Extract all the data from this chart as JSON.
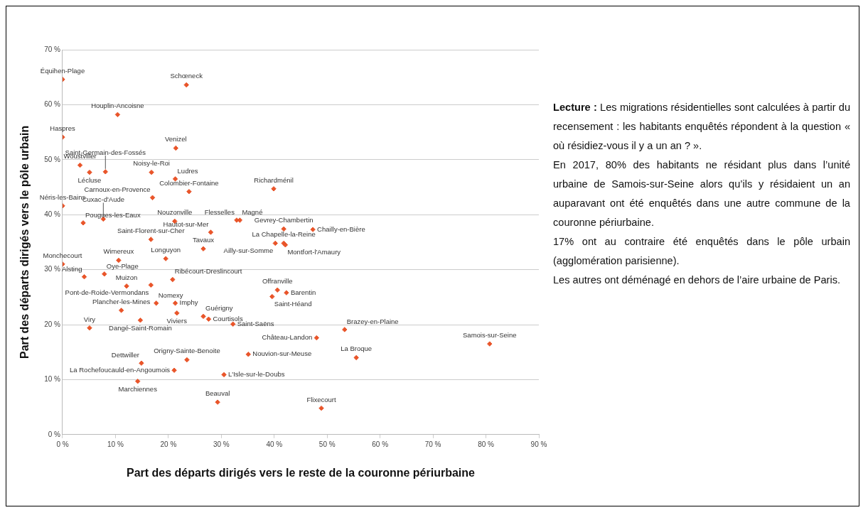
{
  "chart_data": {
    "type": "scatter",
    "xlabel": "Part des départs dirigés vers le reste de la couronne périurbaine",
    "ylabel": "Part des départs dirigés vers le pôle urbain",
    "x": [
      0,
      23.4,
      10.4,
      0,
      21.4,
      3.3,
      5.1,
      8.1,
      16.8,
      21.3,
      23.9,
      17.0,
      0,
      7.7,
      3.9,
      21.2,
      32.9,
      33.5,
      39.9,
      28.0,
      26.6,
      41.8,
      47.3,
      40.2,
      41.8,
      42.1,
      40.6,
      42.3,
      39.6,
      16.7,
      0,
      10.6,
      19.5,
      4.1,
      7.9,
      20.8,
      12.1,
      16.7,
      11.1,
      17.7,
      21.3,
      21.6,
      26.6,
      27.6,
      32.2,
      5.1,
      14.7,
      14.9,
      23.5,
      21.1,
      14.2,
      35.1,
      30.5,
      29.3,
      48.0,
      53.3,
      55.5,
      80.7,
      48.9
    ],
    "series": [
      {
        "color": "#e9552a",
        "values": [
          64.6,
          63.6,
          58.2,
          54.1,
          52.1,
          49.0,
          47.7,
          47.8,
          47.7,
          46.5,
          44.2,
          43.1,
          41.6,
          39.2,
          38.5,
          38.8,
          39.0,
          39.0,
          44.7,
          36.8,
          33.8,
          37.4,
          37.3,
          34.8,
          34.8,
          34.5,
          26.3,
          25.8,
          25.1,
          35.5,
          31.0,
          31.7,
          32.0,
          28.7,
          29.2,
          28.2,
          27.0,
          27.2,
          22.6,
          23.9,
          23.9,
          22.1,
          21.5,
          21.0,
          20.1,
          19.4,
          20.8,
          13.0,
          13.6,
          11.7,
          9.7,
          14.6,
          10.9,
          5.9,
          17.6,
          19.1,
          14.0,
          16.5,
          4.8
        ]
      }
    ],
    "xlim": [
      0,
      90
    ],
    "xticks": [
      {
        "value": 0,
        "label": "0 %"
      },
      {
        "value": 10,
        "label": "10 %"
      },
      {
        "value": 20,
        "label": "20 %"
      },
      {
        "value": 30,
        "label": "30 %"
      },
      {
        "value": 40,
        "label": "40 %"
      },
      {
        "value": 50,
        "label": "50 %"
      },
      {
        "value": 60,
        "label": "60 %"
      },
      {
        "value": 70,
        "label": "70 %"
      },
      {
        "value": 80,
        "label": "80 %"
      },
      {
        "value": 90,
        "label": "90 %"
      }
    ],
    "ylim": [
      0,
      70
    ],
    "yticks": [
      {
        "value": 0,
        "label": "0 %"
      },
      {
        "value": 10,
        "label": "10 %"
      },
      {
        "value": 20,
        "label": "20 %"
      },
      {
        "value": 30,
        "label": "30 %"
      },
      {
        "value": 40,
        "label": "40 %"
      },
      {
        "value": 50,
        "label": "50 %"
      },
      {
        "value": 60,
        "label": "60 %"
      },
      {
        "value": 70,
        "label": "70 %"
      }
    ],
    "grid": "y",
    "marker": "diamond",
    "annotations": [
      {
        "text": "Équihen-Plage",
        "x": 0,
        "y": 64.6
      },
      {
        "text": "Schœneck",
        "x": 23.4,
        "y": 63.6
      },
      {
        "text": "Houplin-Ancoisne",
        "x": 10.4,
        "y": 58.2
      },
      {
        "text": "Haspres",
        "x": 0,
        "y": 54.1
      },
      {
        "text": "Venizel",
        "x": 21.4,
        "y": 52.1
      },
      {
        "text": "Woustviller",
        "x": 3.3,
        "y": 49.0
      },
      {
        "text": "Lécluse",
        "x": 5.1,
        "y": 47.7
      },
      {
        "text": "Saint-Germain-des-Fossés",
        "x": 8.1,
        "y": 47.8
      },
      {
        "text": "Noisy-le-Roi",
        "x": 16.8,
        "y": 47.7
      },
      {
        "text": "Ludres",
        "x": 21.3,
        "y": 46.5
      },
      {
        "text": "Colombier-Fontaine",
        "x": 23.9,
        "y": 44.2
      },
      {
        "text": "Carnoux-en-Provence",
        "x": 17.0,
        "y": 43.1
      },
      {
        "text": "Néris-les-Bains",
        "x": 0,
        "y": 41.6
      },
      {
        "text": "Cuxac-d'Aude",
        "x": 7.7,
        "y": 39.2
      },
      {
        "text": "Pougues-les-Eaux",
        "x": 3.9,
        "y": 38.5
      },
      {
        "text": "Nouzonville",
        "x": 21.2,
        "y": 38.8
      },
      {
        "text": "Flesselles",
        "x": 32.9,
        "y": 39.0
      },
      {
        "text": "Magné",
        "x": 33.5,
        "y": 39.0
      },
      {
        "text": "Richardménil",
        "x": 39.9,
        "y": 44.7
      },
      {
        "text": "Hautot-sur-Mer",
        "x": 28.0,
        "y": 36.8
      },
      {
        "text": "Tavaux",
        "x": 26.6,
        "y": 33.8
      },
      {
        "text": "Gevrey-Chambertin",
        "x": 41.8,
        "y": 37.4
      },
      {
        "text": "Chailly-en-Bière",
        "x": 47.3,
        "y": 37.3
      },
      {
        "text": "Ailly-sur-Somme",
        "x": 40.2,
        "y": 34.8
      },
      {
        "text": "La Chapelle-la-Reine",
        "x": 41.8,
        "y": 34.8
      },
      {
        "text": "Montfort-l'Amaury",
        "x": 42.1,
        "y": 34.5
      },
      {
        "text": "Offranville",
        "x": 40.6,
        "y": 26.3
      },
      {
        "text": "Barentin",
        "x": 42.3,
        "y": 25.8
      },
      {
        "text": "Saint-Héand",
        "x": 39.6,
        "y": 25.1
      },
      {
        "text": "Saint-Florent-sur-Cher",
        "x": 16.7,
        "y": 35.5
      },
      {
        "text": "Monchecourt",
        "x": 0,
        "y": 31.0
      },
      {
        "text": "Wimereux",
        "x": 10.6,
        "y": 31.7
      },
      {
        "text": "Longuyon",
        "x": 19.5,
        "y": 32.0
      },
      {
        "text": "Alsting",
        "x": 4.1,
        "y": 28.7
      },
      {
        "text": "Oye-Plage",
        "x": 7.9,
        "y": 29.2
      },
      {
        "text": "Ribécourt-Dreslincourt",
        "x": 20.8,
        "y": 28.2
      },
      {
        "text": "Muizon",
        "x": 12.1,
        "y": 27.0
      },
      {
        "text": "Pont-de-Roide-Vermondans",
        "x": 16.7,
        "y": 27.2
      },
      {
        "text": "Plancher-les-Mines",
        "x": 11.1,
        "y": 22.6
      },
      {
        "text": "Nomexy",
        "x": 17.7,
        "y": 23.9
      },
      {
        "text": "Imphy",
        "x": 21.3,
        "y": 23.9
      },
      {
        "text": "Viviers",
        "x": 21.6,
        "y": 22.1
      },
      {
        "text": "Guérigny",
        "x": 26.6,
        "y": 21.5
      },
      {
        "text": "Courtisols",
        "x": 27.6,
        "y": 21.0
      },
      {
        "text": "Saint-Saëns",
        "x": 32.2,
        "y": 20.1
      },
      {
        "text": "Viry",
        "x": 5.1,
        "y": 19.4
      },
      {
        "text": "Dangé-Saint-Romain",
        "x": 14.7,
        "y": 20.8
      },
      {
        "text": "Dettwiller",
        "x": 14.9,
        "y": 13.0
      },
      {
        "text": "Origny-Sainte-Benoite",
        "x": 23.5,
        "y": 13.6
      },
      {
        "text": "La Rochefoucauld-en-Angoumois",
        "x": 21.1,
        "y": 11.7
      },
      {
        "text": "Marchiennes",
        "x": 14.2,
        "y": 9.7
      },
      {
        "text": "Nouvion-sur-Meuse",
        "x": 35.1,
        "y": 14.6
      },
      {
        "text": "L'Isle-sur-le-Doubs",
        "x": 30.5,
        "y": 10.9
      },
      {
        "text": "Beauval",
        "x": 29.3,
        "y": 5.9
      },
      {
        "text": "Château-Landon",
        "x": 48.0,
        "y": 17.6
      },
      {
        "text": "Brazey-en-Plaine",
        "x": 53.3,
        "y": 19.1
      },
      {
        "text": "La Broque",
        "x": 55.5,
        "y": 14.0
      },
      {
        "text": "Samois-sur-Seine",
        "x": 80.7,
        "y": 16.5
      },
      {
        "text": "Flixecourt",
        "x": 48.9,
        "y": 4.8
      },
      "Lecture : Les migrations résidentielles sont calculées à partir du recensement : les habitants enquêtés répondent à la question « où résidiez-vous il y a un an ? ».",
      "En 2017, 80% des habitants ne résidant plus dans l’unité urbaine de Samois-sur-Seine alors qu’ils y résidaient un an auparavant ont été enquêtés dans une autre commune de la couronne périurbaine.",
      "17% ont au contraire été enquêtés dans le pôle urbain (agglomération parisienne).",
      "Les autres ont déménagé en dehors de l’aire urbaine de Paris."
    ]
  }
}
